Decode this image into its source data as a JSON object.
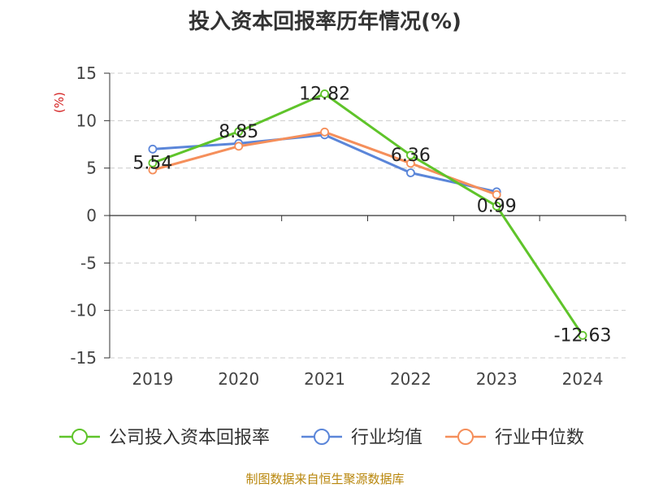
{
  "title": "投入资本回报率历年情况(%)",
  "source": "制图数据来自恒生聚源数据库",
  "chart_data": {
    "type": "line",
    "title": "投入资本回报率历年情况(%)",
    "ylabel": "(%)",
    "xlabel": "",
    "categories": [
      "2019",
      "2020",
      "2021",
      "2022",
      "2023",
      "2024"
    ],
    "ylim": [
      -15,
      15
    ],
    "yticks": [
      "15",
      "10",
      "5",
      "0",
      "-5",
      "-10",
      "-15"
    ],
    "grid": true,
    "legend_position": "bottom",
    "series": [
      {
        "name": "公司投入资本回报率",
        "color": "#5fc42a",
        "values": [
          5.54,
          8.85,
          12.82,
          6.36,
          0.99,
          -12.63
        ],
        "data_labels": [
          "5.54",
          "8.85",
          "12.82",
          "6.36",
          "0.99",
          "-12.63"
        ]
      },
      {
        "name": "行业均值",
        "color": "#5b86d9",
        "values": [
          7.0,
          7.6,
          8.5,
          4.5,
          2.5,
          null
        ]
      },
      {
        "name": "行业中位数",
        "color": "#f58f5b",
        "values": [
          4.8,
          7.3,
          8.8,
          5.5,
          2.2,
          null
        ]
      }
    ]
  }
}
